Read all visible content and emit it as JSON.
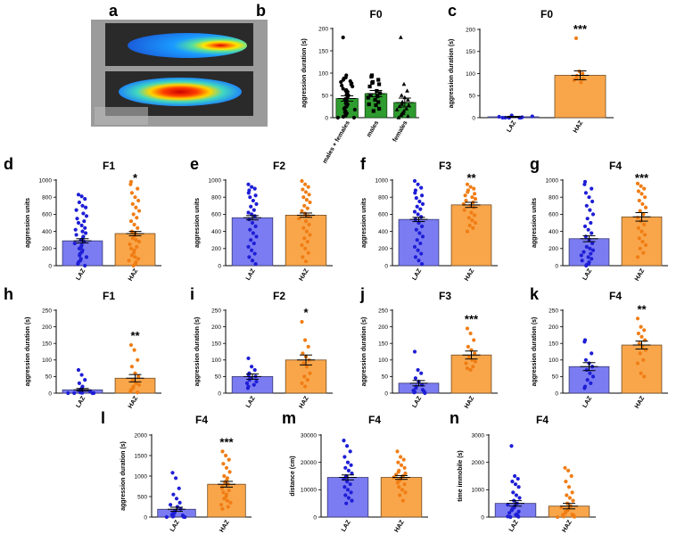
{
  "panel_a": {
    "letter": "a",
    "image": "activity-heatmap-photo"
  },
  "chart_data": [
    {
      "id": "b",
      "letter": "b",
      "type": "bar",
      "title": "F0",
      "ylabel": "aggression duration (s)",
      "ylim": [
        0,
        200
      ],
      "yticks": [
        0,
        50,
        100,
        150,
        200
      ],
      "categories": [
        "males + females",
        "males",
        "females"
      ],
      "values": [
        43,
        54,
        34
      ],
      "errors": [
        6,
        7,
        10
      ],
      "bar_colors": [
        "#2e9c2e",
        "#2e9c2e",
        "#2e9c2e"
      ],
      "markers": [
        "circle",
        "square",
        "triangle"
      ],
      "points": [
        [
          180,
          95,
          90,
          88,
          85,
          82,
          80,
          77,
          75,
          72,
          70,
          65,
          62,
          60,
          58,
          55,
          52,
          50,
          48,
          45,
          42,
          40,
          38,
          35,
          32,
          30,
          28,
          25,
          22,
          20,
          18,
          15,
          12,
          10,
          8,
          5,
          3,
          2,
          0,
          0
        ],
        [
          95,
          92,
          85,
          80,
          78,
          75,
          70,
          60,
          55,
          50,
          48,
          45,
          40,
          35,
          30,
          28,
          20,
          15
        ],
        [
          180,
          75,
          60,
          50,
          45,
          40,
          35,
          30,
          28,
          25,
          20,
          18,
          15,
          10,
          8,
          5,
          3,
          0
        ]
      ],
      "sig": ""
    },
    {
      "id": "c",
      "letter": "c",
      "type": "bar",
      "title": "F0",
      "ylabel": "aggression duration (s)",
      "ylim": [
        0,
        200
      ],
      "yticks": [
        0,
        50,
        100,
        150,
        200
      ],
      "categories": [
        "LAZ",
        "HAZ"
      ],
      "values": [
        2,
        96
      ],
      "errors": [
        1,
        10
      ],
      "bar_colors": [
        "#7b7cf2",
        "#f9a64b"
      ],
      "markers": [
        "circle",
        "circle"
      ],
      "points": [
        [
          0,
          0,
          0,
          0,
          0,
          0,
          1,
          2,
          3,
          5
        ],
        [
          180,
          105,
          100,
          95,
          90,
          88,
          85,
          80
        ]
      ],
      "sig": "***"
    },
    {
      "id": "d",
      "letter": "d",
      "type": "bar",
      "title": "F1",
      "ylabel": "aggression units",
      "ylim": [
        0,
        1000
      ],
      "yticks": [
        0,
        200,
        400,
        600,
        800,
        1000
      ],
      "categories": [
        "LAZ",
        "HAZ"
      ],
      "values": [
        290,
        375
      ],
      "errors": [
        25,
        25
      ],
      "bar_colors": [
        "#7b7cf2",
        "#f9a64b"
      ],
      "markers": [
        "circle",
        "circle"
      ],
      "points": [
        [
          830,
          810,
          780,
          740,
          700,
          680,
          650,
          610,
          580,
          550,
          520,
          500,
          470,
          440,
          420,
          400,
          380,
          360,
          340,
          320,
          300,
          280,
          260,
          240,
          220,
          200,
          180,
          160,
          140,
          120,
          100,
          80,
          60,
          40,
          20,
          0
        ],
        [
          980,
          950,
          900,
          850,
          800,
          760,
          720,
          680,
          640,
          600,
          560,
          520,
          480,
          440,
          400,
          380,
          350,
          320,
          300,
          280,
          250,
          220,
          200,
          180,
          150,
          120,
          100,
          80,
          60,
          40,
          20,
          0
        ]
      ],
      "sig": "*"
    },
    {
      "id": "e",
      "letter": "e",
      "type": "bar",
      "title": "F2",
      "ylabel": "aggression units",
      "ylim": [
        0,
        1000
      ],
      "yticks": [
        0,
        200,
        400,
        600,
        800,
        1000
      ],
      "categories": [
        "LAZ",
        "HAZ"
      ],
      "values": [
        560,
        590
      ],
      "errors": [
        25,
        25
      ],
      "bar_colors": [
        "#7b7cf2",
        "#f9a64b"
      ],
      "markers": [
        "circle",
        "circle"
      ],
      "points": [
        [
          950,
          920,
          900,
          880,
          850,
          820,
          800,
          760,
          720,
          690,
          650,
          620,
          600,
          580,
          540,
          500,
          460,
          420,
          380,
          340,
          300,
          260,
          220,
          180,
          140,
          100,
          60,
          20
        ],
        [
          990,
          950,
          920,
          890,
          860,
          830,
          800,
          770,
          740,
          700,
          670,
          640,
          610,
          580,
          550,
          520,
          480,
          440,
          400,
          360,
          320,
          280,
          240,
          200,
          150,
          100,
          50
        ]
      ],
      "sig": ""
    },
    {
      "id": "f",
      "letter": "f",
      "type": "bar",
      "title": "F3",
      "ylabel": "aggression units",
      "ylim": [
        0,
        1000
      ],
      "yticks": [
        0,
        200,
        400,
        600,
        800,
        1000
      ],
      "categories": [
        "LAZ",
        "HAZ"
      ],
      "values": [
        540,
        710
      ],
      "errors": [
        25,
        30
      ],
      "bar_colors": [
        "#7b7cf2",
        "#f9a64b"
      ],
      "markers": [
        "circle",
        "circle"
      ],
      "points": [
        [
          990,
          950,
          910,
          880,
          850,
          820,
          790,
          750,
          720,
          690,
          660,
          630,
          600,
          570,
          540,
          500,
          460,
          420,
          380,
          340,
          300,
          260,
          220,
          180,
          140,
          100,
          60,
          20
        ],
        [
          950,
          920,
          900,
          880,
          860,
          840,
          820,
          800,
          780,
          760,
          740,
          720,
          700,
          680,
          650,
          620,
          590,
          560,
          530,
          500,
          470,
          440,
          400
        ]
      ],
      "sig": "**"
    },
    {
      "id": "g",
      "letter": "g",
      "type": "bar",
      "title": "F4",
      "ylabel": "aggression units",
      "ylim": [
        0,
        1000
      ],
      "yticks": [
        0,
        200,
        400,
        600,
        800,
        1000
      ],
      "categories": [
        "LAZ",
        "HAZ"
      ],
      "values": [
        315,
        570
      ],
      "errors": [
        35,
        50
      ],
      "bar_colors": [
        "#7b7cf2",
        "#f9a64b"
      ],
      "markers": [
        "circle",
        "circle"
      ],
      "points": [
        [
          980,
          950,
          900,
          850,
          800,
          750,
          700,
          650,
          600,
          550,
          500,
          460,
          420,
          380,
          340,
          300,
          260,
          220,
          200,
          180,
          160,
          140,
          120,
          100,
          80,
          60,
          40,
          20,
          10,
          0
        ],
        [
          960,
          930,
          900,
          870,
          840,
          800,
          760,
          720,
          680,
          640,
          600,
          560,
          520,
          480,
          440,
          400,
          360,
          320,
          280,
          240,
          200,
          150,
          100
        ]
      ],
      "sig": "***"
    },
    {
      "id": "h",
      "letter": "h",
      "type": "bar",
      "title": "F1",
      "ylabel": "aggression duration (s)",
      "ylim": [
        0,
        250
      ],
      "yticks": [
        0,
        50,
        100,
        150,
        200,
        250
      ],
      "categories": [
        "LAZ",
        "HAZ"
      ],
      "values": [
        10,
        45
      ],
      "errors": [
        4,
        11
      ],
      "bar_colors": [
        "#7b7cf2",
        "#f9a64b"
      ],
      "markers": [
        "circle",
        "circle"
      ],
      "points": [
        [
          70,
          55,
          40,
          30,
          20,
          15,
          10,
          8,
          5,
          3,
          2,
          1,
          0,
          0,
          0,
          0
        ],
        [
          145,
          130,
          100,
          80,
          60,
          50,
          40,
          30,
          25,
          20,
          15,
          10,
          5,
          2
        ]
      ],
      "sig": "**"
    },
    {
      "id": "i",
      "letter": "i",
      "type": "bar",
      "title": "F2",
      "ylabel": "aggression duration (s)",
      "ylim": [
        0,
        250
      ],
      "yticks": [
        0,
        50,
        100,
        150,
        200,
        250
      ],
      "categories": [
        "LAZ",
        "HAZ"
      ],
      "values": [
        50,
        100
      ],
      "errors": [
        8,
        15
      ],
      "bar_colors": [
        "#7b7cf2",
        "#f9a64b"
      ],
      "markers": [
        "circle",
        "circle"
      ],
      "points": [
        [
          105,
          80,
          70,
          60,
          55,
          50,
          45,
          40,
          35,
          30,
          25,
          20,
          15
        ],
        [
          215,
          160,
          140,
          120,
          110,
          100,
          90,
          80,
          60,
          50,
          40,
          30,
          20
        ]
      ],
      "sig": "*"
    },
    {
      "id": "j",
      "letter": "j",
      "type": "bar",
      "title": "F3",
      "ylabel": "aggression duration (s)",
      "ylim": [
        0,
        250
      ],
      "yticks": [
        0,
        50,
        100,
        150,
        200,
        250
      ],
      "categories": [
        "LAZ",
        "HAZ"
      ],
      "values": [
        30,
        115
      ],
      "errors": [
        8,
        12
      ],
      "bar_colors": [
        "#7b7cf2",
        "#f9a64b"
      ],
      "markers": [
        "circle",
        "circle"
      ],
      "points": [
        [
          125,
          70,
          60,
          45,
          35,
          25,
          20,
          15,
          10,
          8,
          5,
          3,
          2,
          0
        ],
        [
          195,
          180,
          160,
          140,
          130,
          120,
          110,
          100,
          95,
          90,
          80,
          75,
          70
        ]
      ],
      "sig": "***"
    },
    {
      "id": "k",
      "letter": "k",
      "type": "bar",
      "title": "F4",
      "ylabel": "aggression duration (s)",
      "ylim": [
        0,
        250
      ],
      "yticks": [
        0,
        50,
        100,
        150,
        200,
        250
      ],
      "categories": [
        "LAZ",
        "HAZ"
      ],
      "values": [
        80,
        145
      ],
      "errors": [
        12,
        12
      ],
      "bar_colors": [
        "#7b7cf2",
        "#f9a64b"
      ],
      "markers": [
        "circle",
        "circle"
      ],
      "points": [
        [
          160,
          155,
          120,
          100,
          90,
          80,
          70,
          60,
          50,
          40,
          30,
          20,
          15
        ],
        [
          225,
          200,
          190,
          180,
          170,
          160,
          150,
          140,
          130,
          120,
          100,
          90,
          60,
          50
        ]
      ],
      "sig": "**"
    },
    {
      "id": "l",
      "letter": "l",
      "type": "bar",
      "title": "F4",
      "ylabel": "aggression duration (s)",
      "ylim": [
        0,
        2000
      ],
      "yticks": [
        0,
        500,
        1000,
        1500,
        2000
      ],
      "categories": [
        "LAZ",
        "HAZ"
      ],
      "values": [
        190,
        800
      ],
      "errors": [
        50,
        70
      ],
      "bar_colors": [
        "#7b7cf2",
        "#f9a64b"
      ],
      "markers": [
        "circle",
        "circle"
      ],
      "points": [
        [
          1080,
          950,
          700,
          550,
          450,
          350,
          300,
          250,
          200,
          150,
          100,
          80,
          60,
          40,
          20,
          10,
          5,
          0,
          0
        ],
        [
          1600,
          1500,
          1400,
          1300,
          1200,
          1100,
          1000,
          950,
          900,
          850,
          800,
          750,
          700,
          650,
          600,
          550,
          500,
          450,
          400,
          350,
          300,
          250,
          200
        ]
      ],
      "sig": "***"
    },
    {
      "id": "m",
      "letter": "m",
      "type": "bar",
      "title": "F4",
      "ylabel": "distance (cm)",
      "ylim": [
        0,
        30000
      ],
      "yticks": [
        0,
        10000,
        20000,
        30000
      ],
      "categories": [
        "LAZ",
        "HAZ"
      ],
      "values": [
        14500,
        14500
      ],
      "errors": [
        900,
        700
      ],
      "bar_colors": [
        "#7b7cf2",
        "#f9a64b"
      ],
      "markers": [
        "circle",
        "circle"
      ],
      "points": [
        [
          28000,
          26000,
          24000,
          22000,
          20000,
          19000,
          18000,
          17000,
          16000,
          15000,
          14500,
          14000,
          13000,
          12000,
          11000,
          10000,
          9000,
          8000,
          7000,
          6000,
          5000
        ],
        [
          24000,
          22000,
          21000,
          20000,
          19000,
          18000,
          17000,
          16500,
          16000,
          15500,
          15000,
          14500,
          14000,
          13500,
          13000,
          12500,
          12000,
          11000,
          10000,
          9000,
          8000,
          6000
        ]
      ],
      "sig": ""
    },
    {
      "id": "n",
      "letter": "n",
      "type": "bar",
      "title": "F4",
      "ylabel": "time immobile (s)",
      "ylim": [
        0,
        3000
      ],
      "yticks": [
        0,
        1000,
        2000,
        3000
      ],
      "categories": [
        "LAZ",
        "HAZ"
      ],
      "values": [
        500,
        400
      ],
      "errors": [
        100,
        100
      ],
      "bar_colors": [
        "#7b7cf2",
        "#f9a64b"
      ],
      "markers": [
        "circle",
        "circle"
      ],
      "points": [
        [
          2600,
          1500,
          1400,
          1300,
          1200,
          1100,
          900,
          800,
          700,
          600,
          500,
          450,
          400,
          350,
          300,
          250,
          200,
          150,
          100,
          80,
          60,
          40,
          20,
          10,
          0
        ],
        [
          1800,
          1700,
          1500,
          1300,
          1100,
          900,
          800,
          700,
          600,
          500,
          400,
          350,
          300,
          250,
          200,
          150,
          100,
          80,
          60,
          40,
          20,
          10,
          0
        ]
      ],
      "sig": ""
    }
  ]
}
